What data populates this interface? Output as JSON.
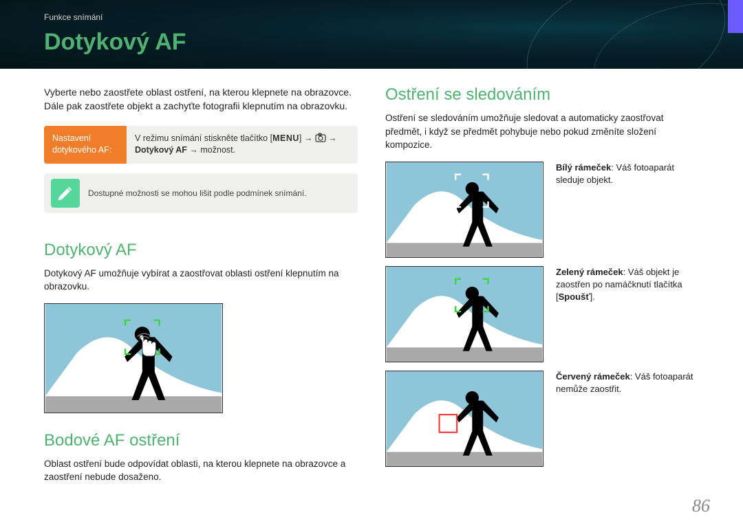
{
  "colors": {
    "accent_green": "#4fb271",
    "accent_orange": "#f07d2a",
    "note_icon_bg": "#55d69a",
    "sky": "#8fc5d8",
    "mountain": "#ffffff",
    "ground": "#a9a9a9",
    "focus_green": "#3bd640",
    "focus_white": "#ffffff",
    "focus_red": "#ff2a2a"
  },
  "breadcrumb": "Funkce snímání",
  "page_title": "Dotykový AF",
  "page_number": "86",
  "left": {
    "intro": "Vyberte nebo zaostřete oblast ostření, na kterou klepnete na obrazovce. Dále pak zaostřete objekt a zachyťte fotografii klepnutím na obrazovku.",
    "setting_label": "Nastavení dotykového AF:",
    "setting_prefix": "V režimu snímání stiskněte tlačítko [",
    "setting_menu": "MENU",
    "setting_mid": "] → ",
    "setting_bold": "Dotykový AF",
    "setting_suffix": " → možnost.",
    "note": "Dostupné možnosti se mohou lišit podle podmínek snímání.",
    "sub1_title": "Dotykový AF",
    "sub1_body": "Dotykový AF umožňuje vybírat a zaostřovat oblasti ostření klepnutím na obrazovku.",
    "sub2_title": "Bodové AF ostření",
    "sub2_body": "Oblast ostření bude odpovídat oblasti, na kterou klepnete na obrazovce a zaostření nebude dosaženo."
  },
  "right": {
    "title": "Ostření se sledováním",
    "body": "Ostření se sledováním umožňuje sledovat a automaticky zaostřovat předmět, i když se předmět pohybuje nebo pokud změníte složení kompozice.",
    "items": [
      {
        "label_bold": "Bílý rámeček",
        "label_rest": ": Váš fotoaparát sleduje objekt.",
        "frame": "white"
      },
      {
        "label_bold": "Zelený rámeček",
        "label_rest": ": Váš objekt je zaostřen po namáčknutí tlačítka [",
        "label_bold2": "Spoušť",
        "label_rest2": "].",
        "frame": "green"
      },
      {
        "label_bold": "Červený rámeček",
        "label_rest": ": Váš fotoaparát nemůže zaostřit.",
        "frame": "red"
      }
    ]
  }
}
